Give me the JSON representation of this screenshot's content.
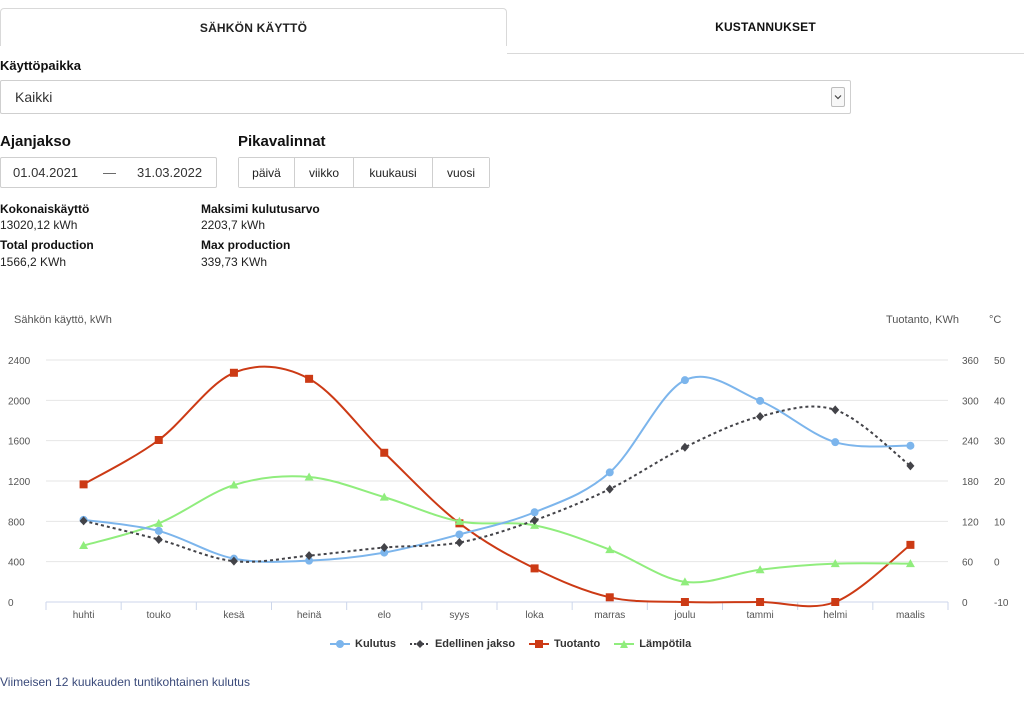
{
  "tabs": [
    {
      "label": "SÄHKÖN KÄYTTÖ",
      "active": true
    },
    {
      "label": "KUSTANNUKSET",
      "active": false
    }
  ],
  "site": {
    "label": "Käyttöpaikka",
    "selected": "Kaikki"
  },
  "period": {
    "label": "Ajanjakso",
    "start": "01.04.2021",
    "separator": "—",
    "end": "31.03.2022"
  },
  "quick": {
    "label": "Pikavalinnat",
    "options": [
      "päivä",
      "viikko",
      "kuukausi",
      "vuosi"
    ]
  },
  "stats": {
    "total_consumption_label": "Kokonaiskäyttö",
    "total_consumption_value": "13020,12 kWh",
    "max_consumption_label": "Maksimi kulutusarvo",
    "max_consumption_value": "2203,7 kWh",
    "total_production_label": "Total production",
    "total_production_value": "1566,2 KWh",
    "max_production_label": "Max production",
    "max_production_value": "339,73 KWh"
  },
  "chart_data": {
    "type": "line",
    "categories": [
      "huhti",
      "touko",
      "kesä",
      "heinä",
      "elo",
      "syys",
      "loka",
      "marras",
      "joulu",
      "tammi",
      "helmi",
      "maalis"
    ],
    "y_left": {
      "label": "Sähkön käyttö, kWh",
      "min": 0,
      "max": 2400,
      "ticks": [
        "0",
        "400",
        "800",
        "1200",
        "1600",
        "2000",
        "2400"
      ]
    },
    "y_production": {
      "label": "Tuotanto, KWh",
      "min": 0,
      "max": 360,
      "ticks": [
        "0",
        "60",
        "120",
        "180",
        "240",
        "300",
        "360"
      ]
    },
    "y_temperature": {
      "label": "°C",
      "min": -10,
      "max": 50,
      "ticks": [
        "-10",
        "0",
        "10",
        "20",
        "30",
        "40",
        "50"
      ]
    },
    "grid": true,
    "legend_position": "bottom-center",
    "series": [
      {
        "name": "Kulutus",
        "axis": "left",
        "color": "#7cb5ec",
        "marker": "circle",
        "dashed": false,
        "values": [
          815,
          705,
          430,
          410,
          490,
          670,
          890,
          1285,
          2200,
          1995,
          1585,
          1550
        ]
      },
      {
        "name": "Edellinen jakso",
        "axis": "left",
        "color": "#434348",
        "marker": "diamond",
        "dashed": true,
        "values": [
          805,
          620,
          405,
          460,
          540,
          590,
          810,
          1120,
          1535,
          1840,
          1905,
          1350
        ]
      },
      {
        "name": "Tuotanto",
        "axis": "production",
        "color": "#cc3a15",
        "marker": "square",
        "dashed": false,
        "values": [
          175,
          241,
          341,
          332,
          222,
          117,
          50,
          7,
          0,
          0,
          0,
          85
        ]
      },
      {
        "name": "Lämpötila",
        "axis": "temperature",
        "color": "#90ed7d",
        "marker": "triangle",
        "dashed": false,
        "values": [
          4,
          9.5,
          19,
          21,
          16,
          10,
          9,
          3,
          -5,
          -2,
          -0.5,
          -0.5
        ]
      }
    ]
  },
  "footer_link": "Viimeisen 12 kuukauden tuntikohtainen kulutus"
}
